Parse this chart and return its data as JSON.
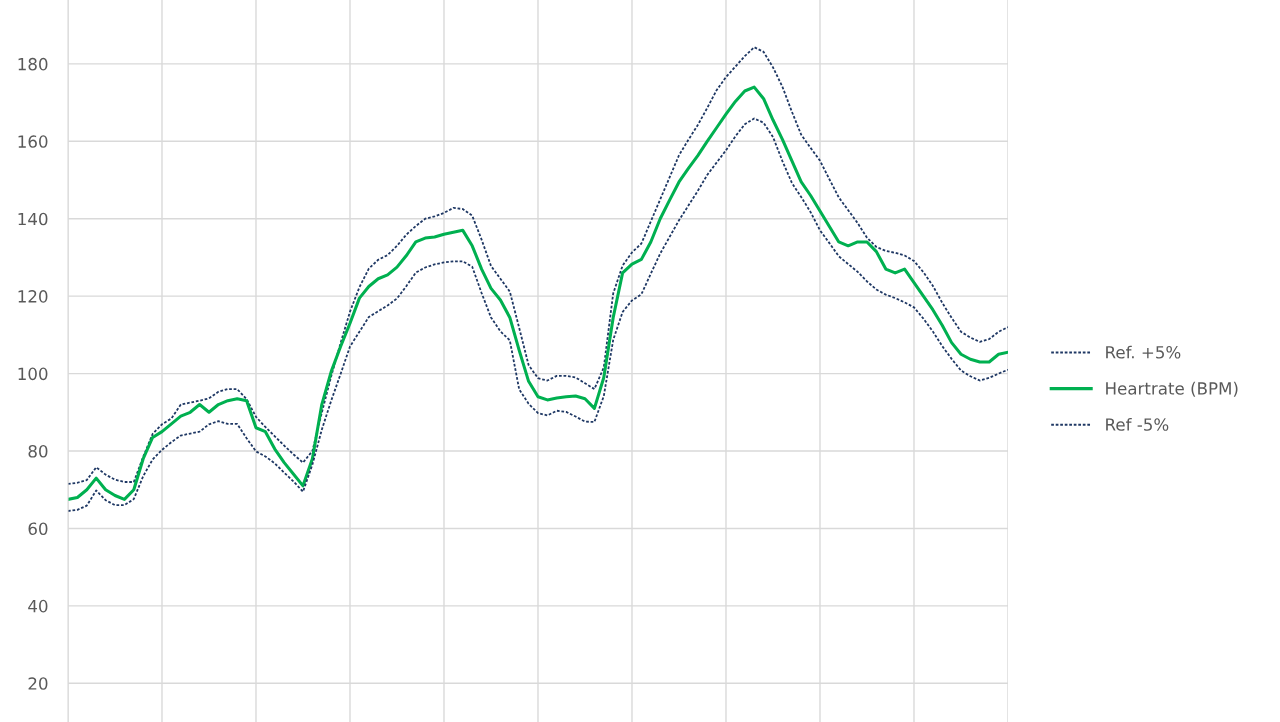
{
  "chart_data": {
    "type": "line",
    "categories": [
      null,
      null,
      null,
      null,
      null,
      null,
      null,
      null,
      null,
      null,
      null,
      null,
      null,
      null,
      null,
      null,
      null,
      null,
      null,
      null,
      null,
      null,
      null,
      null,
      null,
      null,
      null,
      null,
      null,
      null,
      null,
      null,
      null,
      null,
      null,
      null,
      null,
      null,
      null,
      null,
      null,
      null,
      null,
      null,
      null,
      null,
      null,
      null,
      null,
      null,
      null,
      null,
      null,
      null,
      null,
      null,
      null,
      null,
      null,
      null,
      null,
      null,
      null,
      null,
      null,
      null,
      null,
      null,
      null,
      null,
      null,
      null,
      null,
      null,
      null,
      null,
      null,
      null,
      null,
      null,
      null,
      null,
      null,
      null,
      null,
      null,
      null,
      null,
      null,
      null,
      null,
      null,
      null,
      null,
      null,
      null,
      null,
      null,
      null,
      null,
      null
    ],
    "ylim": [
      10,
      196.5
    ],
    "yticks": [
      20,
      40,
      60,
      80,
      100,
      120,
      140,
      160,
      180
    ],
    "tick_labels": "y",
    "grid": true,
    "legend": "right",
    "marker": "none",
    "series": [
      {
        "name": "Ref. +5%",
        "color": "#1f3864",
        "line_style": "dotted",
        "values": [
          71.5,
          71.8,
          72.5,
          75.8,
          73.9,
          72.6,
          72,
          72,
          78.5,
          84.4,
          86.9,
          88.4,
          92,
          92.5,
          93,
          93.6,
          95.3,
          96,
          96,
          93.4,
          88.8,
          86.2,
          83.8,
          81.4,
          79.1,
          77,
          80,
          89.9,
          99.3,
          107.9,
          116,
          122.3,
          127.1,
          129.4,
          130.6,
          133,
          135.9,
          138.1,
          140,
          140.6,
          141.5,
          142.8,
          142.5,
          140.8,
          134.6,
          127.8,
          124.5,
          121.2,
          111.8,
          102.2,
          98.8,
          98.2,
          99.4,
          99.4,
          99,
          97.5,
          96,
          101.6,
          120.7,
          127.9,
          131.3,
          133.6,
          139.3,
          145,
          150.7,
          156.4,
          160.4,
          164.2,
          168.6,
          173.2,
          176.6,
          179.3,
          182,
          184.3,
          183.1,
          179.1,
          174.1,
          167.7,
          161.7,
          158.3,
          155,
          150.2,
          145.5,
          142.2,
          138.9,
          135.1,
          132.7,
          131.7,
          131.2,
          130.5,
          129.1,
          126.2,
          122.7,
          118.3,
          114.4,
          110.8,
          109.3,
          108.2,
          108.9,
          110.8,
          112
        ]
      },
      {
        "name": "Heartrate (BPM)",
        "color": "#00b050",
        "line_style": "solid",
        "values": [
          67.5,
          68,
          70,
          73,
          70,
          68.5,
          67.5,
          70,
          78,
          83.5,
          85,
          87,
          89,
          90,
          92,
          90,
          92,
          93,
          93.5,
          93,
          86,
          85,
          80.5,
          77,
          74,
          71,
          78,
          92,
          100.5,
          107,
          113,
          119.5,
          122.5,
          124.5,
          125.5,
          127.5,
          130.5,
          134,
          135,
          135.3,
          136,
          136.5,
          137,
          133,
          127,
          122,
          119,
          114.5,
          106,
          98,
          94,
          93.2,
          93.7,
          94,
          94.2,
          93.5,
          91,
          99,
          114.5,
          126,
          128.3,
          129.5,
          134,
          140,
          144.8,
          149.5,
          153,
          156.3,
          160,
          163.5,
          167,
          170.3,
          173,
          174,
          171,
          165.5,
          160.5,
          155,
          149.5,
          146,
          142,
          138,
          134,
          133,
          134,
          134,
          131.5,
          127,
          126,
          127,
          123.5,
          120,
          116.5,
          112.5,
          108,
          105,
          103.7,
          103,
          103,
          105,
          105.5
        ]
      },
      {
        "name": "Ref -5%",
        "color": "#1f3864",
        "line_style": "dotted",
        "values": [
          64.5,
          64.8,
          65.9,
          69.8,
          67.3,
          66,
          66,
          67.6,
          73.5,
          77.8,
          80.3,
          82.3,
          84,
          84.5,
          85,
          86.9,
          87.7,
          87,
          87,
          83.3,
          79.9,
          78.6,
          76.8,
          74.4,
          72.1,
          69.5,
          76.5,
          85.5,
          93,
          99.9,
          107,
          110.8,
          114.6,
          116.1,
          117.6,
          119.4,
          122.6,
          126.1,
          127.4,
          128.2,
          128.7,
          129,
          129,
          127.6,
          120.8,
          114.5,
          110.9,
          108.6,
          95.9,
          92.2,
          89.8,
          89.2,
          90.4,
          90.1,
          88.9,
          87.6,
          87.5,
          94.2,
          108.7,
          115.9,
          118.9,
          120.5,
          125.8,
          131,
          135.3,
          139.6,
          143.4,
          147.2,
          151.3,
          154.5,
          157.7,
          161.3,
          164.4,
          165.9,
          164.8,
          161.1,
          154.9,
          149.3,
          145.6,
          141.7,
          137,
          133.7,
          130.3,
          128.3,
          126.3,
          123.8,
          121.7,
          120.4,
          119.5,
          118.4,
          117.1,
          114.2,
          110.9,
          107.1,
          103.8,
          100.8,
          99.3,
          98.2,
          98.9,
          100,
          101
        ]
      }
    ]
  }
}
